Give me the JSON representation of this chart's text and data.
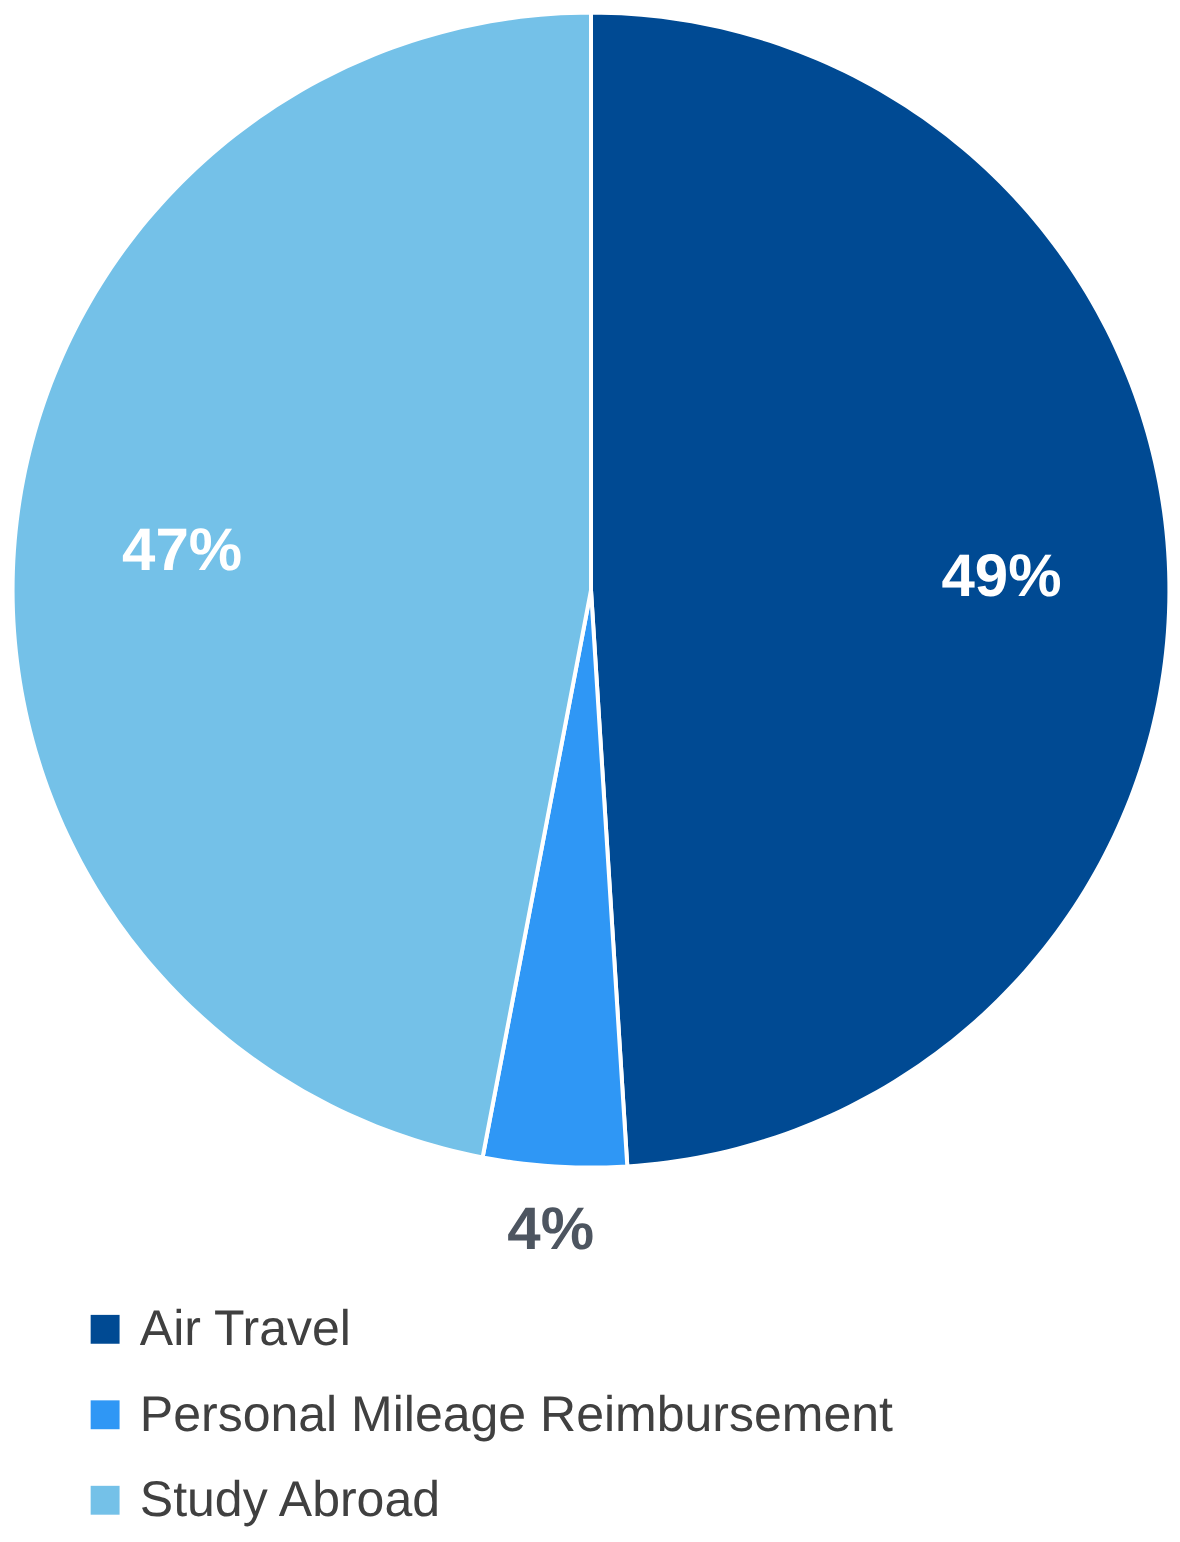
{
  "chart_data": {
    "type": "pie",
    "categories": [
      "Air Travel",
      "Personal Mileage Reimbursement",
      "Study Abroad"
    ],
    "values": [
      49,
      4,
      47
    ],
    "colors": [
      "#004a93",
      "#2f97f5",
      "#74c1e8"
    ],
    "value_labels": [
      "49%",
      "4%",
      "47%"
    ],
    "legend": "bottom"
  }
}
